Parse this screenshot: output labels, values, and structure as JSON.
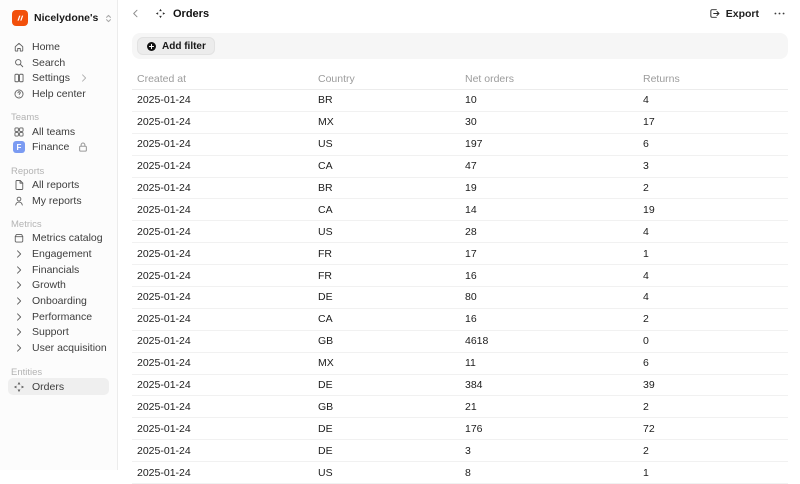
{
  "workspace": {
    "name": "Nicelydone's",
    "logo_color": "#f2500b",
    "logo_icon": "workspace-logo-icon",
    "switcher_icon": "chevron-select-icon"
  },
  "sidebar": {
    "primary": [
      {
        "label": "Home",
        "icon": "home-icon"
      },
      {
        "label": "Search",
        "icon": "search-icon"
      },
      {
        "label": "Settings",
        "icon": "settings-icon",
        "trail": "chevron-right-icon"
      },
      {
        "label": "Help center",
        "icon": "help-icon"
      }
    ],
    "sections": [
      {
        "title": "Teams",
        "items": [
          {
            "label": "All teams",
            "icon": "grid-icon"
          },
          {
            "label": "Finance",
            "icon": "finance-avatar",
            "avatar_letter": "F",
            "avatar_color": "#7b9bf2",
            "trail": "lock-icon"
          }
        ]
      },
      {
        "title": "Reports",
        "items": [
          {
            "label": "All reports",
            "icon": "document-icon"
          },
          {
            "label": "My reports",
            "icon": "person-icon"
          }
        ]
      },
      {
        "title": "Metrics",
        "items": [
          {
            "label": "Metrics catalog",
            "icon": "catalog-icon"
          },
          {
            "label": "Engagement",
            "icon": "chevron-right-icon"
          },
          {
            "label": "Financials",
            "icon": "chevron-right-icon"
          },
          {
            "label": "Growth",
            "icon": "chevron-right-icon"
          },
          {
            "label": "Onboarding",
            "icon": "chevron-right-icon"
          },
          {
            "label": "Performance",
            "icon": "chevron-right-icon"
          },
          {
            "label": "Support",
            "icon": "chevron-right-icon"
          },
          {
            "label": "User acquisition",
            "icon": "chevron-right-icon"
          }
        ]
      },
      {
        "title": "Entities",
        "items": [
          {
            "label": "Orders",
            "icon": "orders-icon",
            "selected": true
          }
        ]
      }
    ]
  },
  "header": {
    "title": "Orders",
    "title_icon": "orders-icon",
    "back_icon": "chevron-left-icon",
    "export_label": "Export",
    "export_icon": "export-icon",
    "more_icon": "ellipsis-icon"
  },
  "filter": {
    "add_filter_label": "Add filter",
    "add_filter_icon": "plus-circle-icon"
  },
  "table": {
    "columns": [
      "Created at",
      "Country",
      "Net orders",
      "Returns"
    ],
    "rows": [
      [
        "2025-01-24",
        "BR",
        "10",
        "4"
      ],
      [
        "2025-01-24",
        "MX",
        "30",
        "17"
      ],
      [
        "2025-01-24",
        "US",
        "197",
        "6"
      ],
      [
        "2025-01-24",
        "CA",
        "47",
        "3"
      ],
      [
        "2025-01-24",
        "BR",
        "19",
        "2"
      ],
      [
        "2025-01-24",
        "CA",
        "14",
        "19"
      ],
      [
        "2025-01-24",
        "US",
        "28",
        "4"
      ],
      [
        "2025-01-24",
        "FR",
        "17",
        "1"
      ],
      [
        "2025-01-24",
        "FR",
        "16",
        "4"
      ],
      [
        "2025-01-24",
        "DE",
        "80",
        "4"
      ],
      [
        "2025-01-24",
        "CA",
        "16",
        "2"
      ],
      [
        "2025-01-24",
        "GB",
        "4618",
        "0"
      ],
      [
        "2025-01-24",
        "MX",
        "11",
        "6"
      ],
      [
        "2025-01-24",
        "DE",
        "384",
        "39"
      ],
      [
        "2025-01-24",
        "GB",
        "21",
        "2"
      ],
      [
        "2025-01-24",
        "DE",
        "176",
        "72"
      ],
      [
        "2025-01-24",
        "DE",
        "3",
        "2"
      ],
      [
        "2025-01-24",
        "US",
        "8",
        "1"
      ]
    ]
  }
}
